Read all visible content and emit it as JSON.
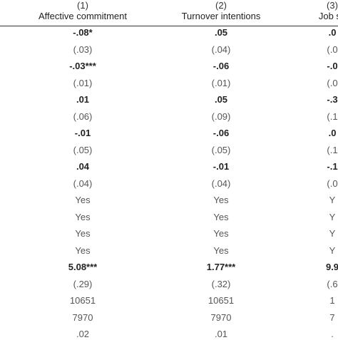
{
  "columns": [
    {
      "number": "(1)",
      "name": "Affective commitment"
    },
    {
      "number": "(2)",
      "name": "Turnover intentions"
    },
    {
      "number": "(3)",
      "name": "Job sa"
    }
  ],
  "rows": [
    {
      "kind": "coef",
      "values": [
        "-.08*",
        ".05",
        ".0"
      ]
    },
    {
      "kind": "se",
      "values": [
        "(.03)",
        "(.04)",
        "(.0"
      ]
    },
    {
      "kind": "coef",
      "values": [
        "-.03***",
        "-.06",
        "-.0"
      ]
    },
    {
      "kind": "se",
      "values": [
        "(.01)",
        "(.01)",
        "(.0"
      ]
    },
    {
      "kind": "coef",
      "values": [
        ".01",
        ".05",
        "-.3"
      ]
    },
    {
      "kind": "se",
      "values": [
        "(.06)",
        "(.09)",
        "(.1"
      ]
    },
    {
      "kind": "coef",
      "values": [
        "-.01",
        "-.06",
        ".0"
      ]
    },
    {
      "kind": "se",
      "values": [
        "(.05)",
        "(.05)",
        "(.1"
      ]
    },
    {
      "kind": "coef",
      "values": [
        ".04",
        "-.01",
        "-.1"
      ]
    },
    {
      "kind": "se",
      "values": [
        "(.04)",
        "(.04)",
        "(.0"
      ]
    },
    {
      "kind": "se",
      "values": [
        "Yes",
        "Yes",
        "Y"
      ]
    },
    {
      "kind": "se",
      "values": [
        "Yes",
        "Yes",
        "Y"
      ]
    },
    {
      "kind": "se",
      "values": [
        "Yes",
        "Yes",
        "Y"
      ]
    },
    {
      "kind": "se",
      "values": [
        "Yes",
        "Yes",
        "Y"
      ]
    },
    {
      "kind": "coef",
      "values": [
        "5.08***",
        "1.77***",
        "9.9"
      ]
    },
    {
      "kind": "se",
      "values": [
        "(.29)",
        "(.32)",
        "(.6"
      ]
    },
    {
      "kind": "se",
      "values": [
        "10651",
        "10651",
        "1"
      ]
    },
    {
      "kind": "se",
      "values": [
        "7970",
        "7970",
        "7"
      ]
    },
    {
      "kind": "se",
      "values": [
        ".02",
        ".01",
        "."
      ]
    }
  ]
}
